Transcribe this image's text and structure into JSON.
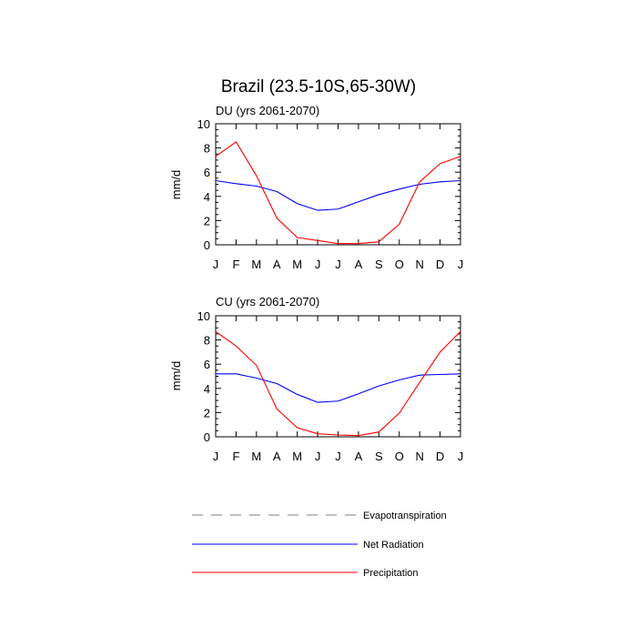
{
  "chart_data": {
    "type": "line",
    "title": "Brazil (23.5-10S,65-30W)",
    "panels": [
      {
        "title": "DU (yrs 2061-2070)",
        "ylabel": "mm/d",
        "ylim": [
          0,
          10
        ],
        "yticks": [
          0,
          2,
          4,
          6,
          8,
          10
        ],
        "categories": [
          "J",
          "F",
          "M",
          "A",
          "M",
          "J",
          "J",
          "A",
          "S",
          "O",
          "N",
          "D",
          "J"
        ],
        "series": [
          {
            "name": "Net Radiation",
            "color": "#0000ff",
            "values": [
              5.3,
              5.05,
              4.85,
              4.4,
              3.4,
              2.85,
              2.95,
              3.55,
              4.15,
              4.6,
              5.0,
              5.2,
              5.3
            ]
          },
          {
            "name": "Precipitation",
            "color": "#ff0000",
            "values": [
              7.3,
              8.5,
              5.7,
              2.2,
              0.6,
              0.35,
              0.1,
              0.1,
              0.25,
              1.7,
              5.2,
              6.7,
              7.3
            ]
          }
        ]
      },
      {
        "title": "CU (yrs 2061-2070)",
        "ylabel": "mm/d",
        "ylim": [
          0,
          10
        ],
        "yticks": [
          0,
          2,
          4,
          6,
          8,
          10
        ],
        "categories": [
          "J",
          "F",
          "M",
          "A",
          "M",
          "J",
          "J",
          "A",
          "S",
          "O",
          "N",
          "D",
          "J"
        ],
        "series": [
          {
            "name": "Net Radiation",
            "color": "#0000ff",
            "values": [
              5.2,
              5.2,
              4.85,
              4.4,
              3.5,
              2.85,
              2.95,
              3.55,
              4.2,
              4.7,
              5.1,
              5.15,
              5.2
            ]
          },
          {
            "name": "Precipitation",
            "color": "#ff0000",
            "values": [
              8.7,
              7.5,
              5.9,
              2.3,
              0.75,
              0.25,
              0.15,
              0.1,
              0.4,
              1.95,
              4.5,
              7.0,
              8.7
            ]
          }
        ]
      }
    ],
    "legend": [
      {
        "name": "Evapotranspiration",
        "color": "#999999",
        "style": "dashed"
      },
      {
        "name": "Net Radiation",
        "color": "#0000ff",
        "style": "solid"
      },
      {
        "name": "Precipitation",
        "color": "#ff0000",
        "style": "solid"
      }
    ]
  }
}
